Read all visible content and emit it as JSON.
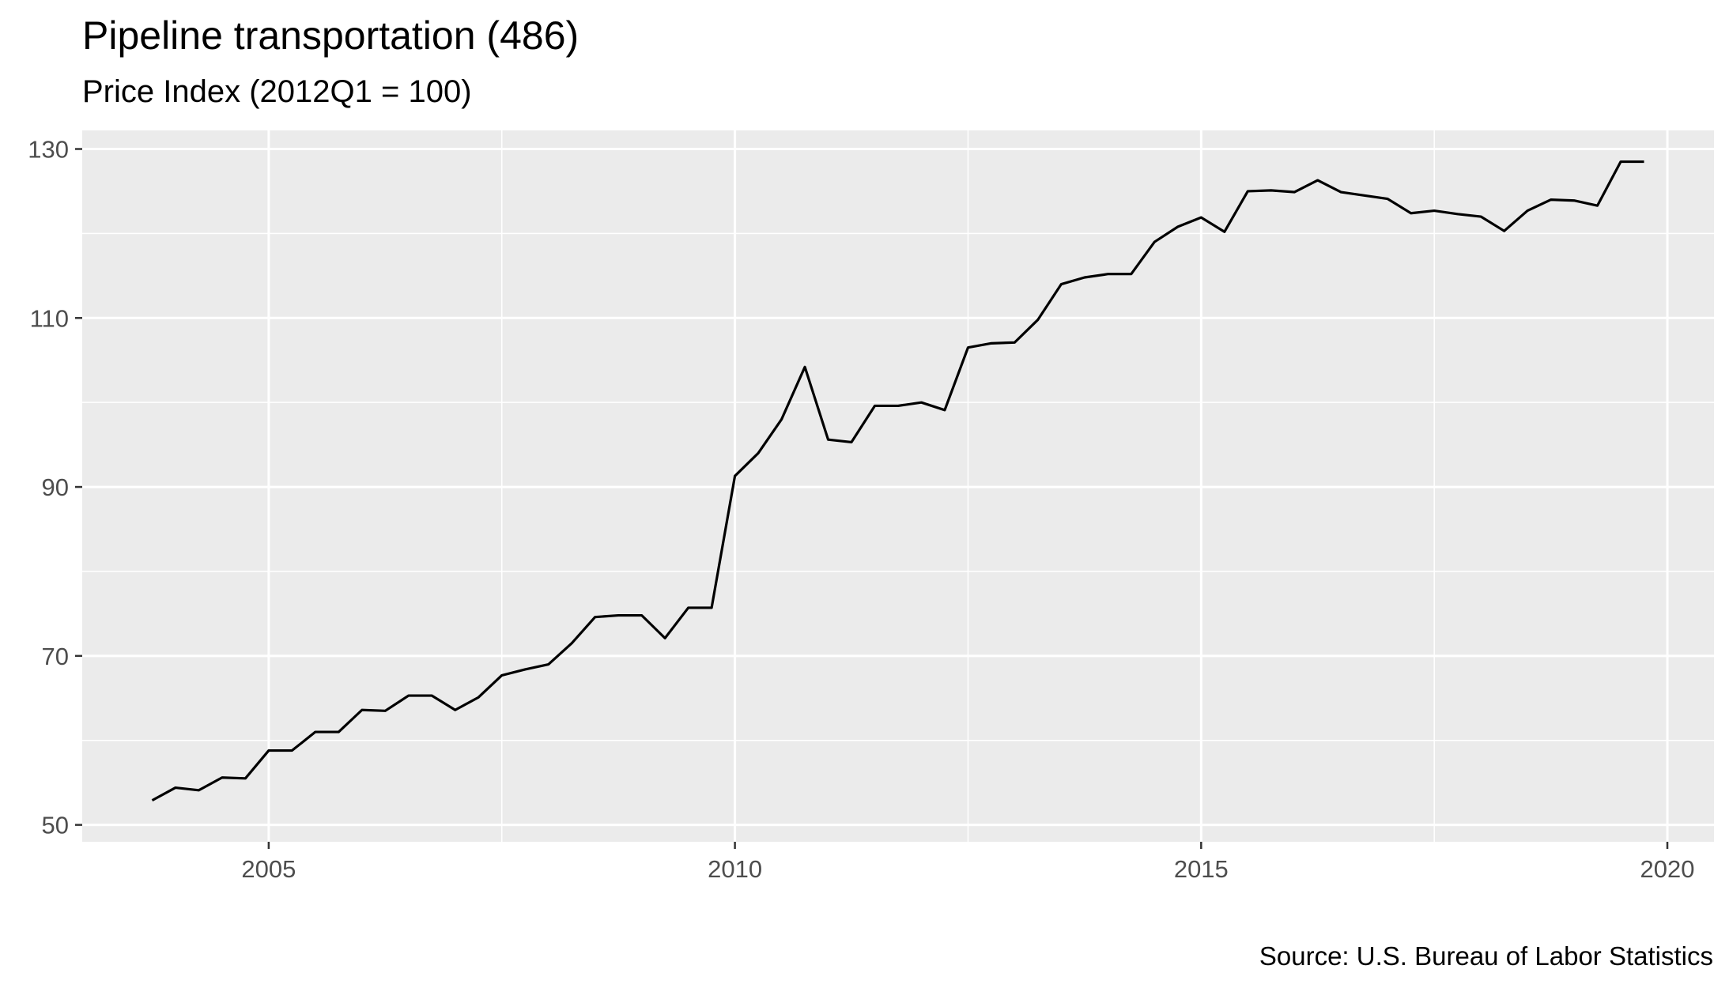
{
  "chart_data": {
    "type": "line",
    "title": "Pipeline transportation (486)",
    "subtitle": "Price Index (2012Q1 = 100)",
    "caption": "Source: U.S. Bureau of Labor Statistics",
    "xlabel": "",
    "ylabel": "",
    "xlim": [
      2003,
      2020.5
    ],
    "ylim": [
      48,
      132.2
    ],
    "x_ticks": [
      2005,
      2010,
      2015,
      2020
    ],
    "y_ticks": [
      50,
      70,
      90,
      110,
      130
    ],
    "grid": true,
    "legend": "none",
    "colors": {
      "panel": "#ebebeb",
      "grid": "#ffffff",
      "line": "#000000",
      "tick_text": "#4d4d4d",
      "axis_tick": "#333333"
    },
    "series": [
      {
        "x": [
          2003.75,
          2004.0,
          2004.25,
          2004.5,
          2004.75,
          2005.0,
          2005.25,
          2005.5,
          2005.75,
          2006.0,
          2006.25,
          2006.5,
          2006.75,
          2007.0,
          2007.25,
          2007.5,
          2007.75,
          2008.0,
          2008.25,
          2008.5,
          2008.75,
          2009.0,
          2009.25,
          2009.5,
          2009.75,
          2010.0,
          2010.25,
          2010.5,
          2010.75,
          2011.0,
          2011.25,
          2011.5,
          2011.75,
          2012.0,
          2012.25,
          2012.5,
          2012.75,
          2013.0,
          2013.25,
          2013.5,
          2013.75,
          2014.0,
          2014.25,
          2014.5,
          2014.75,
          2015.0,
          2015.25,
          2015.5,
          2015.75,
          2016.0,
          2016.25,
          2016.5,
          2016.75,
          2017.0,
          2017.25,
          2017.5,
          2017.75,
          2018.0,
          2018.25,
          2018.5,
          2018.75,
          2019.0,
          2019.25,
          2019.5,
          2019.75
        ],
        "values": [
          52.9,
          54.4,
          54.1,
          55.6,
          55.5,
          58.8,
          58.8,
          61.0,
          61.0,
          63.6,
          63.5,
          65.3,
          65.3,
          63.6,
          65.1,
          67.7,
          68.4,
          69.0,
          71.5,
          74.6,
          74.8,
          74.8,
          72.1,
          75.7,
          75.7,
          91.3,
          94.0,
          98.0,
          104.2,
          95.6,
          95.3,
          99.6,
          99.6,
          100.0,
          99.1,
          106.5,
          107.0,
          107.1,
          109.8,
          114.0,
          114.8,
          115.2,
          115.2,
          119.0,
          120.8,
          121.9,
          120.2,
          125.0,
          125.1,
          124.9,
          126.3,
          124.9,
          124.5,
          124.1,
          122.4,
          122.7,
          122.3,
          122.0,
          120.3,
          122.7,
          124.0,
          123.9,
          123.3,
          128.5,
          128.5
        ]
      }
    ]
  }
}
